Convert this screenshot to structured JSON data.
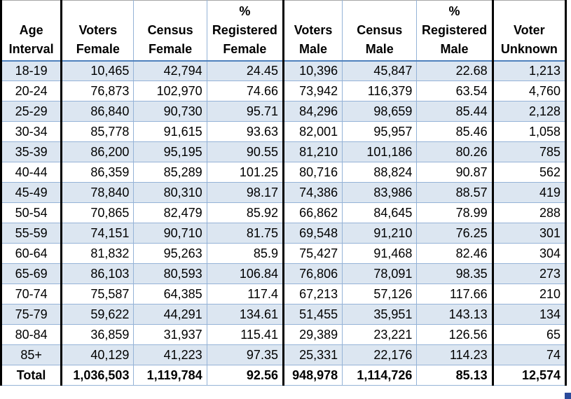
{
  "colors": {
    "band_fill": "#dce6f1",
    "row_border": "#95b3d7",
    "header_underline": "#4f81bd",
    "thick_border": "#000000",
    "top_border": "#a6a6a6",
    "fill_handle": "#2b4a9b"
  },
  "table": {
    "header": [
      {
        "id": "age-interval",
        "lines": [
          "Age",
          "Interval"
        ]
      },
      {
        "id": "voters-female",
        "lines": [
          "Voters",
          "Female"
        ]
      },
      {
        "id": "census-female",
        "lines": [
          "Census",
          "Female"
        ]
      },
      {
        "id": "pct-registered-female",
        "lines": [
          "%",
          "Registered",
          "Female"
        ]
      },
      {
        "id": "voters-male",
        "lines": [
          "Voters",
          "Male"
        ]
      },
      {
        "id": "census-male",
        "lines": [
          "Census",
          "Male"
        ]
      },
      {
        "id": "pct-registered-male",
        "lines": [
          "%",
          "Registered",
          "Male"
        ]
      },
      {
        "id": "voter-unknown",
        "lines": [
          "Voter",
          "Unknown"
        ]
      }
    ],
    "rows": [
      {
        "cells": [
          "18-19",
          "10,465",
          "42,794",
          "24.45",
          "10,396",
          "45,847",
          "22.68",
          "1,213"
        ]
      },
      {
        "cells": [
          "20-24",
          "76,873",
          "102,970",
          "74.66",
          "73,942",
          "116,379",
          "63.54",
          "4,760"
        ]
      },
      {
        "cells": [
          "25-29",
          "86,840",
          "90,730",
          "95.71",
          "84,296",
          "98,659",
          "85.44",
          "2,128"
        ]
      },
      {
        "cells": [
          "30-34",
          "85,778",
          "91,615",
          "93.63",
          "82,001",
          "95,957",
          "85.46",
          "1,058"
        ]
      },
      {
        "cells": [
          "35-39",
          "86,200",
          "95,195",
          "90.55",
          "81,210",
          "101,186",
          "80.26",
          "785"
        ]
      },
      {
        "cells": [
          "40-44",
          "86,359",
          "85,289",
          "101.25",
          "80,716",
          "88,824",
          "90.87",
          "562"
        ]
      },
      {
        "cells": [
          "45-49",
          "78,840",
          "80,310",
          "98.17",
          "74,386",
          "83,986",
          "88.57",
          "419"
        ]
      },
      {
        "cells": [
          "50-54",
          "70,865",
          "82,479",
          "85.92",
          "66,862",
          "84,645",
          "78.99",
          "288"
        ]
      },
      {
        "cells": [
          "55-59",
          "74,151",
          "90,710",
          "81.75",
          "69,548",
          "91,210",
          "76.25",
          "301"
        ]
      },
      {
        "cells": [
          "60-64",
          "81,832",
          "95,263",
          "85.9",
          "75,427",
          "91,468",
          "82.46",
          "304"
        ]
      },
      {
        "cells": [
          "65-69",
          "86,103",
          "80,593",
          "106.84",
          "76,806",
          "78,091",
          "98.35",
          "273"
        ]
      },
      {
        "cells": [
          "70-74",
          "75,587",
          "64,385",
          "117.4",
          "67,213",
          "57,126",
          "117.66",
          "210"
        ]
      },
      {
        "cells": [
          "75-79",
          "59,622",
          "44,291",
          "134.61",
          "51,455",
          "35,951",
          "143.13",
          "134"
        ]
      },
      {
        "cells": [
          "80-84",
          "36,859",
          "31,937",
          "115.41",
          "29,389",
          "23,221",
          "126.56",
          "65"
        ]
      },
      {
        "cells": [
          "85+",
          "40,129",
          "41,223",
          "97.35",
          "25,331",
          "22,176",
          "114.23",
          "74"
        ]
      }
    ],
    "total_row": {
      "cells": [
        "Total",
        "1,036,503",
        "1,119,784",
        "92.56",
        "948,978",
        "1,114,726",
        "85.13",
        "12,574"
      ]
    }
  }
}
